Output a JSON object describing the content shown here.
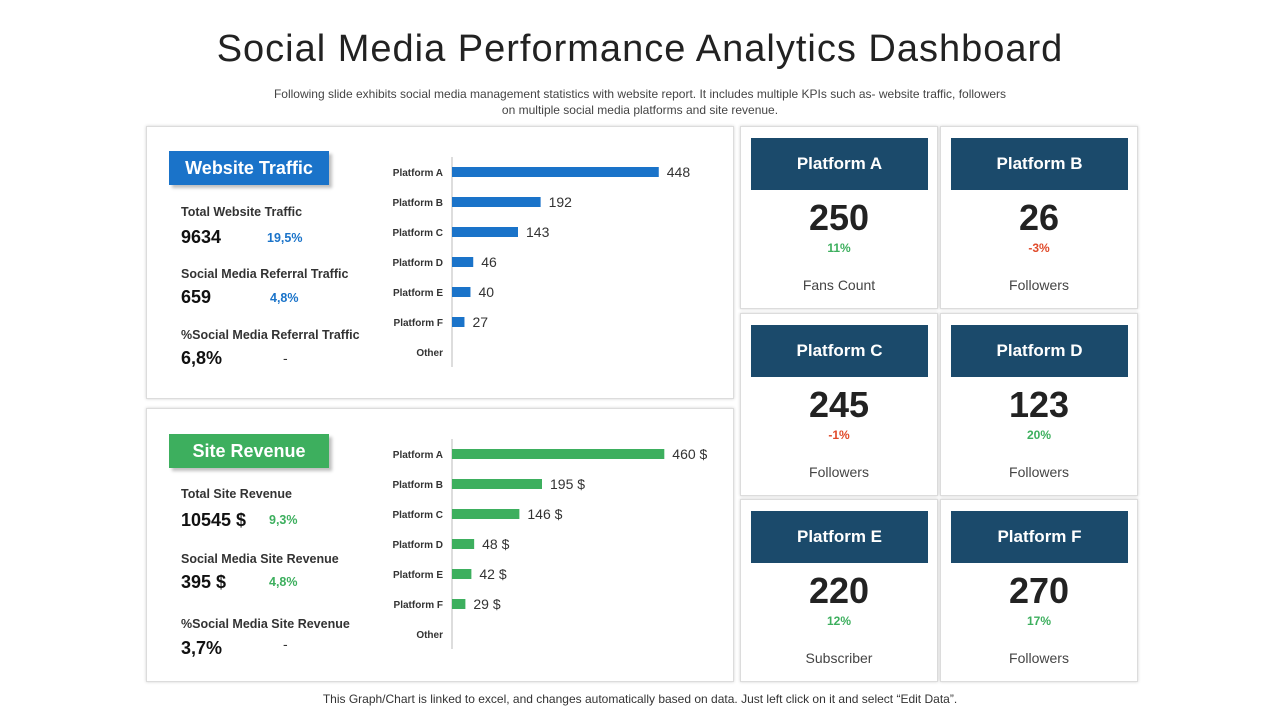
{
  "title": "Social Media Performance Analytics Dashboard",
  "subtitle": "Following slide exhibits social media management statistics with website report. It includes multiple KPIs such as- website traffic, followers on multiple social media platforms and site revenue.",
  "footer": "This Graph/Chart is linked to excel, and changes automatically based on data. Just left click on it and select “Edit Data”.",
  "colors": {
    "traffic": "#1a73c9",
    "revenue": "#3daf5e",
    "card_header": "#1b4a6b",
    "positive": "#3daf5e",
    "negative": "#e04a2a"
  },
  "traffic": {
    "label": "Website Traffic",
    "kpis": [
      {
        "label": "Total Website Traffic",
        "value": "9634",
        "change": "19,5%"
      },
      {
        "label": "Social Media Referral Traffic",
        "value": "659",
        "change": "4,8%"
      },
      {
        "label": "%Social Media Referral Traffic",
        "value": "6,8%",
        "change": "-"
      }
    ]
  },
  "revenue": {
    "label": "Site Revenue",
    "kpis": [
      {
        "label": "Total Site Revenue",
        "value": "10545 $",
        "change": "9,3%"
      },
      {
        "label": "Social Media Site Revenue",
        "value": "395 $",
        "change": "4,8%"
      },
      {
        "label": "%Social Media Site Revenue",
        "value": "3,7%",
        "change": "-"
      }
    ]
  },
  "chart_data": [
    {
      "type": "bar",
      "orientation": "horizontal",
      "categories": [
        "Platform A",
        "Platform B",
        "Platform C",
        "Platform D",
        "Platform E",
        "Platform F",
        "Other"
      ],
      "values": [
        448,
        192,
        143,
        46,
        40,
        27,
        null
      ],
      "data_labels": [
        "448",
        "192",
        "143",
        "46",
        "40",
        "27",
        ""
      ],
      "xlim": [
        0,
        520
      ],
      "grid": false,
      "legend": "none"
    },
    {
      "type": "bar",
      "orientation": "horizontal",
      "categories": [
        "Platform A",
        "Platform B",
        "Platform C",
        "Platform D",
        "Platform E",
        "Platform F",
        "Other"
      ],
      "values": [
        460,
        195,
        146,
        48,
        42,
        29,
        null
      ],
      "data_labels": [
        "460 $",
        "195 $",
        "146 $",
        "48 $",
        "42 $",
        "29 $",
        ""
      ],
      "xlim": [
        0,
        520
      ],
      "grid": false,
      "legend": "none"
    }
  ],
  "platforms": [
    {
      "name": "Platform A",
      "value": "250",
      "change": "11%",
      "trend": "positive",
      "metric": "Fans Count"
    },
    {
      "name": "Platform B",
      "value": "26",
      "change": "-3%",
      "trend": "negative",
      "metric": "Followers"
    },
    {
      "name": "Platform C",
      "value": "245",
      "change": "-1%",
      "trend": "negative",
      "metric": "Followers"
    },
    {
      "name": "Platform D",
      "value": "123",
      "change": "20%",
      "trend": "positive",
      "metric": "Followers"
    },
    {
      "name": "Platform E",
      "value": "220",
      "change": "12%",
      "trend": "positive",
      "metric": "Subscriber"
    },
    {
      "name": "Platform F",
      "value": "270",
      "change": "17%",
      "trend": "positive",
      "metric": "Followers"
    }
  ]
}
